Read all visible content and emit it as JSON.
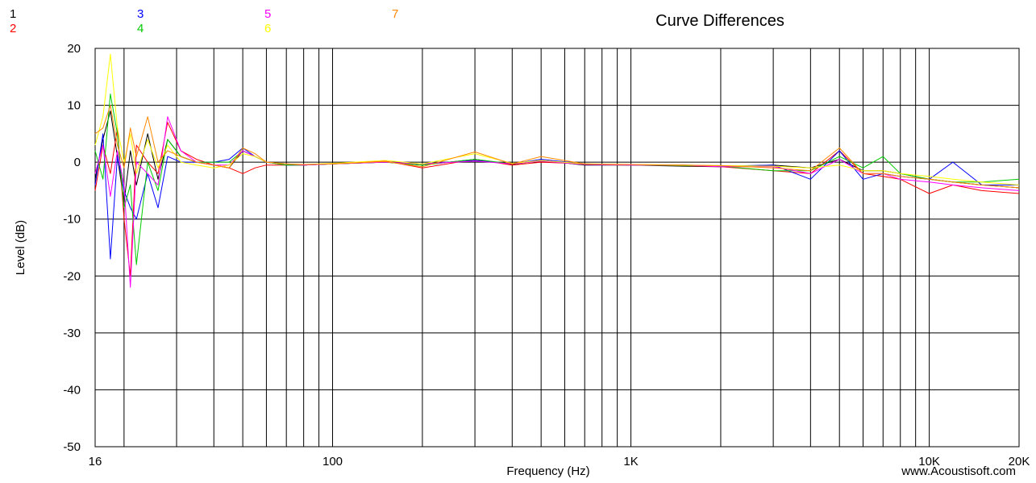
{
  "chart_data": {
    "type": "line",
    "title": "Curve Differences",
    "xlabel": "Frequency (Hz)",
    "ylabel": "Level (dB)",
    "watermark": "www.Acoustisoft.com",
    "x_scale": "log",
    "xlim": [
      16,
      20000
    ],
    "ylim": [
      -50,
      20
    ],
    "y_ticks": [
      20,
      10,
      0,
      -10,
      -20,
      -30,
      -40,
      -50
    ],
    "x_ticks": [
      {
        "value": 16,
        "label": "16"
      },
      {
        "value": 100,
        "label": "100"
      },
      {
        "value": 1000,
        "label": "1K"
      },
      {
        "value": 10000,
        "label": "10K"
      },
      {
        "value": 20000,
        "label": "20K"
      }
    ],
    "grid": true,
    "legend_position": "top-left",
    "series": [
      {
        "name": "1",
        "color": "#000000",
        "points": [
          [
            16,
            -3
          ],
          [
            17,
            4
          ],
          [
            18,
            9
          ],
          [
            19,
            1
          ],
          [
            20,
            -7
          ],
          [
            21,
            2
          ],
          [
            22,
            -4
          ],
          [
            24,
            5
          ],
          [
            26,
            -3
          ],
          [
            28,
            4
          ],
          [
            31,
            1
          ],
          [
            35,
            0
          ],
          [
            40,
            -0.5
          ],
          [
            45,
            -1
          ],
          [
            50,
            2
          ],
          [
            55,
            1
          ],
          [
            60,
            0
          ],
          [
            70,
            -0.3
          ],
          [
            80,
            -0.5
          ],
          [
            100,
            -0.3
          ],
          [
            150,
            0
          ],
          [
            200,
            -0.5
          ],
          [
            300,
            0.5
          ],
          [
            400,
            -0.4
          ],
          [
            500,
            0.3
          ],
          [
            700,
            -0.5
          ],
          [
            1000,
            -0.5
          ],
          [
            1500,
            -0.7
          ],
          [
            2000,
            -0.8
          ],
          [
            3000,
            -0.5
          ],
          [
            4000,
            -1
          ],
          [
            5000,
            0.5
          ],
          [
            6000,
            -1.5
          ],
          [
            7000,
            -1.5
          ],
          [
            8000,
            -2
          ],
          [
            10000,
            -3
          ],
          [
            12000,
            -3.5
          ],
          [
            15000,
            -4
          ],
          [
            20000,
            -4.5
          ]
        ]
      },
      {
        "name": "2",
        "color": "#ff0000",
        "points": [
          [
            16,
            -5
          ],
          [
            17,
            3
          ],
          [
            18,
            -2
          ],
          [
            19,
            6
          ],
          [
            20,
            -10
          ],
          [
            21,
            -20
          ],
          [
            22,
            3
          ],
          [
            24,
            0
          ],
          [
            26,
            -2
          ],
          [
            28,
            7
          ],
          [
            31,
            2
          ],
          [
            35,
            0.5
          ],
          [
            40,
            -0.5
          ],
          [
            45,
            -1
          ],
          [
            50,
            -2
          ],
          [
            55,
            -1
          ],
          [
            60,
            -0.5
          ],
          [
            70,
            -0.5
          ],
          [
            80,
            -0.5
          ],
          [
            100,
            -0.3
          ],
          [
            150,
            0.2
          ],
          [
            200,
            -1
          ],
          [
            300,
            0.5
          ],
          [
            400,
            -0.5
          ],
          [
            500,
            0
          ],
          [
            700,
            -0.3
          ],
          [
            1000,
            -0.5
          ],
          [
            1500,
            -0.6
          ],
          [
            2000,
            -0.8
          ],
          [
            3000,
            -1.5
          ],
          [
            4000,
            -2
          ],
          [
            5000,
            2
          ],
          [
            6000,
            -2
          ],
          [
            7000,
            -2.5
          ],
          [
            8000,
            -3
          ],
          [
            10000,
            -5.5
          ],
          [
            12000,
            -4
          ],
          [
            15000,
            -5
          ],
          [
            20000,
            -5.5
          ]
        ]
      },
      {
        "name": "3",
        "color": "#0000ff",
        "points": [
          [
            16,
            -4
          ],
          [
            17,
            5
          ],
          [
            18,
            -17
          ],
          [
            19,
            1
          ],
          [
            20,
            -5
          ],
          [
            21,
            -8
          ],
          [
            22,
            -10
          ],
          [
            24,
            -2
          ],
          [
            26,
            -8
          ],
          [
            28,
            1
          ],
          [
            31,
            0
          ],
          [
            35,
            0
          ],
          [
            40,
            0
          ],
          [
            45,
            0.5
          ],
          [
            50,
            2.5
          ],
          [
            55,
            1
          ],
          [
            60,
            0
          ],
          [
            70,
            -0.5
          ],
          [
            80,
            -0.5
          ],
          [
            100,
            -0.3
          ],
          [
            150,
            0
          ],
          [
            200,
            -0.3
          ],
          [
            300,
            0.3
          ],
          [
            400,
            -0.3
          ],
          [
            500,
            0.5
          ],
          [
            700,
            -0.3
          ],
          [
            1000,
            -0.5
          ],
          [
            1500,
            -0.5
          ],
          [
            2000,
            -0.7
          ],
          [
            3000,
            -0.5
          ],
          [
            4000,
            -3
          ],
          [
            5000,
            2
          ],
          [
            6000,
            -3
          ],
          [
            7000,
            -2
          ],
          [
            8000,
            -2.5
          ],
          [
            10000,
            -3
          ],
          [
            12000,
            0
          ],
          [
            15000,
            -4
          ],
          [
            20000,
            -4
          ]
        ]
      },
      {
        "name": "4",
        "color": "#00cc00",
        "points": [
          [
            16,
            2
          ],
          [
            17,
            -3
          ],
          [
            18,
            12
          ],
          [
            19,
            5
          ],
          [
            20,
            -8
          ],
          [
            21,
            -4
          ],
          [
            22,
            -18
          ],
          [
            24,
            0
          ],
          [
            26,
            -5
          ],
          [
            28,
            4
          ],
          [
            31,
            1
          ],
          [
            35,
            0
          ],
          [
            40,
            0
          ],
          [
            45,
            0
          ],
          [
            50,
            2
          ],
          [
            55,
            1
          ],
          [
            60,
            0
          ],
          [
            70,
            -0.5
          ],
          [
            80,
            -0.5
          ],
          [
            100,
            -0.3
          ],
          [
            150,
            0
          ],
          [
            200,
            -0.5
          ],
          [
            300,
            0.5
          ],
          [
            400,
            -0.3
          ],
          [
            500,
            0.2
          ],
          [
            700,
            -0.4
          ],
          [
            1000,
            -0.5
          ],
          [
            1500,
            -0.6
          ],
          [
            2000,
            -0.7
          ],
          [
            3000,
            -1.5
          ],
          [
            4000,
            -1.5
          ],
          [
            5000,
            1
          ],
          [
            6000,
            -1
          ],
          [
            7000,
            1
          ],
          [
            8000,
            -2
          ],
          [
            10000,
            -3
          ],
          [
            12000,
            -3.5
          ],
          [
            15000,
            -3.5
          ],
          [
            20000,
            -3
          ]
        ]
      },
      {
        "name": "5",
        "color": "#ff00ff",
        "points": [
          [
            16,
            -2
          ],
          [
            17,
            3
          ],
          [
            18,
            -6
          ],
          [
            19,
            2
          ],
          [
            20,
            -4
          ],
          [
            21,
            -22
          ],
          [
            22,
            0
          ],
          [
            24,
            -2
          ],
          [
            26,
            -4
          ],
          [
            28,
            8
          ],
          [
            31,
            2
          ],
          [
            35,
            0
          ],
          [
            40,
            -0.5
          ],
          [
            45,
            -0.5
          ],
          [
            50,
            2
          ],
          [
            55,
            1
          ],
          [
            60,
            0
          ],
          [
            70,
            -0.3
          ],
          [
            80,
            -0.5
          ],
          [
            100,
            -0.3
          ],
          [
            150,
            0
          ],
          [
            200,
            -0.3
          ],
          [
            300,
            0.2
          ],
          [
            400,
            -0.3
          ],
          [
            500,
            0.2
          ],
          [
            700,
            -0.4
          ],
          [
            1000,
            -0.5
          ],
          [
            1500,
            -0.5
          ],
          [
            2000,
            -0.8
          ],
          [
            3000,
            -0.8
          ],
          [
            4000,
            -2
          ],
          [
            5000,
            0.5
          ],
          [
            6000,
            -2
          ],
          [
            7000,
            -2
          ],
          [
            8000,
            -3
          ],
          [
            10000,
            -3.5
          ],
          [
            12000,
            -4
          ],
          [
            15000,
            -4.5
          ],
          [
            20000,
            -5
          ]
        ]
      },
      {
        "name": "6",
        "color": "#ffff00",
        "points": [
          [
            16,
            3
          ],
          [
            17,
            8
          ],
          [
            18,
            19
          ],
          [
            19,
            6
          ],
          [
            20,
            0
          ],
          [
            21,
            5
          ],
          [
            22,
            -2
          ],
          [
            24,
            4
          ],
          [
            26,
            -1
          ],
          [
            28,
            3
          ],
          [
            31,
            0
          ],
          [
            35,
            -0.5
          ],
          [
            40,
            -1
          ],
          [
            45,
            -0.5
          ],
          [
            50,
            1.5
          ],
          [
            55,
            1
          ],
          [
            60,
            0
          ],
          [
            70,
            -0.3
          ],
          [
            80,
            -0.4
          ],
          [
            100,
            -0.2
          ],
          [
            150,
            0.3
          ],
          [
            200,
            -0.3
          ],
          [
            300,
            1.5
          ],
          [
            400,
            -0.2
          ],
          [
            500,
            0.3
          ],
          [
            700,
            -0.3
          ],
          [
            1000,
            -0.4
          ],
          [
            1500,
            -0.5
          ],
          [
            2000,
            -0.6
          ],
          [
            3000,
            -0.7
          ],
          [
            4000,
            -1
          ],
          [
            5000,
            -0.5
          ],
          [
            6000,
            -1.5
          ],
          [
            7000,
            -1.5
          ],
          [
            8000,
            -2
          ],
          [
            10000,
            -2.5
          ],
          [
            12000,
            -3
          ],
          [
            15000,
            -3.5
          ],
          [
            20000,
            -4
          ]
        ]
      },
      {
        "name": "7",
        "color": "#ff8800",
        "points": [
          [
            16,
            5
          ],
          [
            17,
            6
          ],
          [
            18,
            10
          ],
          [
            19,
            3
          ],
          [
            20,
            -1
          ],
          [
            21,
            6
          ],
          [
            22,
            1
          ],
          [
            24,
            8
          ],
          [
            26,
            0
          ],
          [
            28,
            2
          ],
          [
            31,
            1
          ],
          [
            35,
            0
          ],
          [
            40,
            -0.5
          ],
          [
            45,
            -1
          ],
          [
            50,
            2.5
          ],
          [
            55,
            1.5
          ],
          [
            60,
            0
          ],
          [
            70,
            -0.3
          ],
          [
            80,
            -0.4
          ],
          [
            100,
            -0.3
          ],
          [
            150,
            0.1
          ],
          [
            200,
            -0.8
          ],
          [
            300,
            1.8
          ],
          [
            400,
            -0.3
          ],
          [
            500,
            1
          ],
          [
            700,
            -0.3
          ],
          [
            1000,
            -0.4
          ],
          [
            1500,
            -0.5
          ],
          [
            2000,
            -0.6
          ],
          [
            3000,
            -1
          ],
          [
            4000,
            -1.5
          ],
          [
            5000,
            2.5
          ],
          [
            6000,
            -2
          ],
          [
            7000,
            -2
          ],
          [
            8000,
            -2.5
          ],
          [
            10000,
            -3
          ],
          [
            12000,
            -3.5
          ],
          [
            15000,
            -4
          ],
          [
            20000,
            -4.5
          ]
        ]
      }
    ]
  }
}
